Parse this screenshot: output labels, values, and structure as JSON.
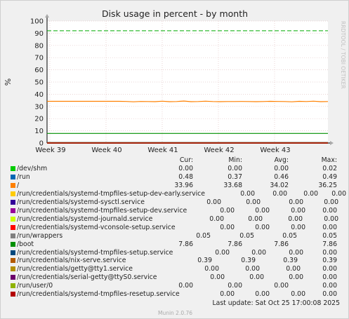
{
  "chart_data": {
    "type": "line",
    "title": "Disk usage in percent - by month",
    "ylabel": "%",
    "xlabel": "",
    "ylim": [
      0,
      100
    ],
    "y_ticks": [
      0,
      10,
      20,
      30,
      40,
      50,
      60,
      70,
      80,
      90,
      100
    ],
    "x_ticks": [
      "Week 39",
      "Week 40",
      "Week 41",
      "Week 42",
      "Week 43"
    ],
    "x_range_weeks": [
      38.95,
      43.95
    ],
    "grid": true,
    "legend_position": "bottom",
    "side_label": "RRDTOOL / TOBI OETIKER",
    "warning_line": {
      "value": 92,
      "color": "#00aa00",
      "style": "dashed"
    },
    "series": [
      {
        "name": "/dev/shm",
        "color": "#00cc00",
        "cur": "0.00",
        "min": "0.00",
        "avg": "0.00",
        "max": "0.02",
        "values": [
          0.0,
          0.0
        ]
      },
      {
        "name": "/run",
        "color": "#0066b3",
        "cur": "0.48",
        "min": "0.37",
        "avg": "0.46",
        "max": "0.49",
        "values": [
          0.46,
          0.46
        ]
      },
      {
        "name": "/",
        "color": "#ff8000",
        "cur": "33.96",
        "min": "33.68",
        "avg": "34.02",
        "max": "36.25",
        "values": [
          34.2,
          34.2,
          34.2,
          34.2,
          34.2,
          34.2,
          34.2,
          34.2,
          34.2,
          34.2,
          34.2,
          34.1,
          33.8,
          34.1,
          34.0,
          33.9,
          34.3,
          33.9,
          34.0,
          34.4,
          33.9,
          34.0,
          34.3,
          34.0,
          33.9,
          34.0,
          34.0,
          34.1,
          34.0,
          33.9,
          34.0,
          34.2,
          34.1,
          34.0,
          33.8,
          34.2,
          34.0,
          34.3,
          33.9,
          34.0
        ]
      },
      {
        "name": "/run/credentials/systemd-tmpfiles-setup-dev-early.service",
        "color": "#ffcc00",
        "cur": "0.00",
        "min": "0.00",
        "avg": "0.00",
        "max": "0.00",
        "values": [
          0.0,
          0.0
        ]
      },
      {
        "name": "/run/credentials/systemd-sysctl.service",
        "color": "#330099",
        "cur": "0.00",
        "min": "0.00",
        "avg": "0.00",
        "max": "0.00",
        "values": [
          0.0,
          0.0
        ]
      },
      {
        "name": "/run/credentials/systemd-tmpfiles-setup-dev.service",
        "color": "#990099",
        "cur": "0.00",
        "min": "0.00",
        "avg": "0.00",
        "max": "0.00",
        "values": [
          0.0,
          0.0
        ]
      },
      {
        "name": "/run/credentials/systemd-journald.service",
        "color": "#ccff00",
        "cur": "0.00",
        "min": "0.00",
        "avg": "0.00",
        "max": "0.00",
        "values": [
          0.0,
          0.0
        ]
      },
      {
        "name": "/run/credentials/systemd-vconsole-setup.service",
        "color": "#ff0000",
        "cur": "0.00",
        "min": "0.00",
        "avg": "0.00",
        "max": "0.00",
        "values": [
          0.0,
          0.0
        ]
      },
      {
        "name": "/run/wrappers",
        "color": "#808080",
        "cur": "0.05",
        "min": "0.05",
        "avg": "0.05",
        "max": "0.05",
        "values": [
          0.05,
          0.05
        ]
      },
      {
        "name": "/boot",
        "color": "#008f00",
        "cur": "7.86",
        "min": "7.86",
        "avg": "7.86",
        "max": "7.86",
        "values": [
          7.86,
          7.86
        ]
      },
      {
        "name": "/run/credentials/systemd-tmpfiles-setup.service",
        "color": "#00487d",
        "cur": "0.00",
        "min": "0.00",
        "avg": "0.00",
        "max": "0.00",
        "values": [
          0.0,
          0.0
        ]
      },
      {
        "name": "/run/credentials/nix-serve.service",
        "color": "#b35a00",
        "cur": "0.39",
        "min": "0.39",
        "avg": "0.39",
        "max": "0.39",
        "values": [
          0.39,
          0.39
        ]
      },
      {
        "name": "/run/credentials/getty@tty1.service",
        "color": "#b38f00",
        "cur": "0.00",
        "min": "0.00",
        "avg": "0.00",
        "max": "0.00",
        "values": [
          0.0,
          0.0
        ]
      },
      {
        "name": "/run/credentials/serial-getty@ttyS0.service",
        "color": "#6b006b",
        "cur": "0.00",
        "min": "0.00",
        "avg": "0.00",
        "max": "0.00",
        "values": [
          0.0,
          0.0
        ]
      },
      {
        "name": "/run/user/0",
        "color": "#8fb300",
        "cur": "0.00",
        "min": "0.00",
        "avg": "0.00",
        "max": "0.00",
        "values": [
          0.0,
          0.0
        ]
      },
      {
        "name": "/run/credentials/systemd-tmpfiles-resetup.service",
        "color": "#b30000",
        "cur": "0.00",
        "min": "0.00",
        "avg": "0.00",
        "max": "0.00",
        "values": [
          0.0,
          0.0
        ]
      }
    ]
  },
  "legend_header": {
    "cur": "Cur:",
    "min": "Min:",
    "avg": "Avg:",
    "max": "Max:"
  },
  "last_update": "Last update: Sat Oct 25 17:00:08 2025",
  "version": "Munin 2.0.76"
}
